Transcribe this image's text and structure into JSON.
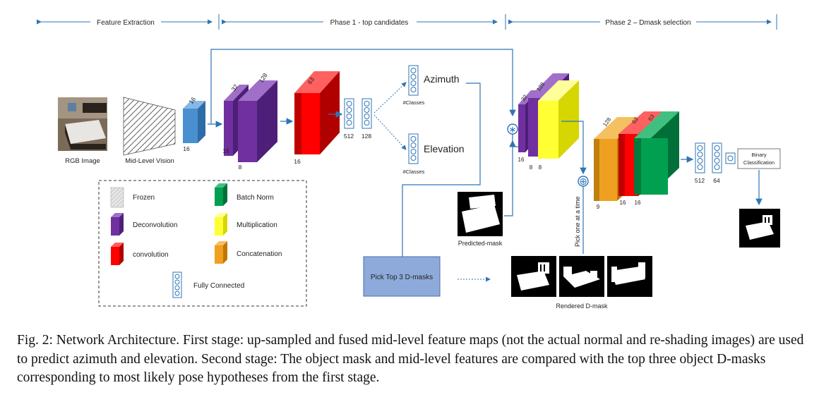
{
  "phases": {
    "feature_extraction": "Feature Extraction",
    "phase1": "Phase 1 - top candidates",
    "phase2": "Phase 2 – Dmask selection"
  },
  "inputs": {
    "rgb_image": "RGB Image",
    "mid_level_vision": "Mid-Level Vision"
  },
  "dims": {
    "d16a": "16",
    "d16b": "16",
    "d32": "32",
    "d128": "128",
    "d16c": "16",
    "d8": "8",
    "d63": "63",
    "d16d": "16",
    "fc512": "512",
    "fc128": "128",
    "p2_32": "32",
    "p2_128": "128",
    "p2_16": "16",
    "p2_8a": "8",
    "p2_8b": "8",
    "p2b_128": "128",
    "p2b_63a": "63",
    "p2b_63b": "63",
    "p2b_9": "9",
    "p2b_16a": "16",
    "p2b_16b": "16",
    "fc2_512": "512",
    "fc2_64": "64"
  },
  "heads": {
    "azimuth": "Azimuth",
    "elevation": "Elevation",
    "classes_a": "#Classes",
    "classes_b": "#Classes",
    "binary_classification_1": "Binary",
    "binary_classification_2": "Classification"
  },
  "masks": {
    "predicted_mask": "Predicted-mask",
    "pick_top3": "Pick Top 3 D-masks",
    "rendered_dmask": "Rendered D-mask",
    "pick_one": "Pick one at a time"
  },
  "ops": {
    "multiply_symbol": "∗",
    "concat_symbol": "⊕"
  },
  "legend": {
    "frozen": "Frozen",
    "deconvolution": "Deconvolution",
    "convolution": "convolution",
    "batch_norm": "Batch Norm",
    "multiplication": "Multiplication",
    "concatenation": "Concatenation",
    "fully_connected": "Fully Connected"
  },
  "colors": {
    "blue_block": "#4a90d0",
    "purple": "#7030a0",
    "red": "#ff0000",
    "yellow": "#ffff33",
    "orange": "#f0a020",
    "green": "#00a050",
    "fc_stroke": "#2e75b6",
    "arrow": "#2e75b6",
    "pick_box": "#8eaadb"
  },
  "caption": "Fig. 2: Network Architecture. First stage: up-sampled and fused mid-level feature maps (not the actual normal and re-shading images) are used to predict azimuth and elevation. Second stage: The object mask and mid-level features are compared with the top three object D-masks corresponding to most likely pose hypotheses from the first stage."
}
